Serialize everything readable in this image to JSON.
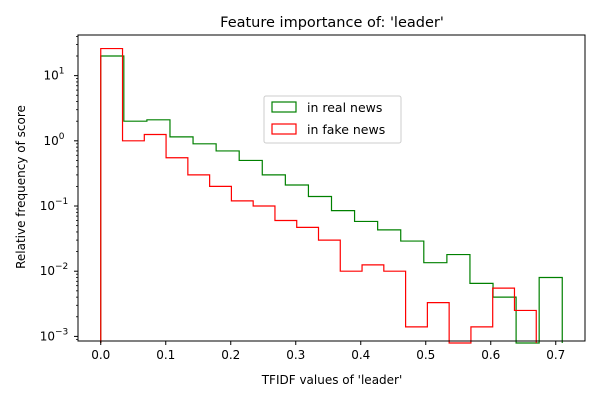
{
  "chart_data": {
    "type": "histogram-step",
    "title": "Feature importance of: 'leader'",
    "xlabel": "TFIDF values of 'leader'",
    "ylabel": "Relative frequency of score",
    "xlim": [
      -0.035,
      0.745
    ],
    "ylim": [
      0.00085,
      42
    ],
    "yscale": "log",
    "grid": false,
    "legend_position": "center-top",
    "x_ticks": [
      "0.0",
      "0.1",
      "0.2",
      "0.3",
      "0.4",
      "0.5",
      "0.6",
      "0.7"
    ],
    "x_tick_values": [
      0,
      0.1,
      0.2,
      0.3,
      0.4,
      0.5,
      0.6,
      0.7
    ],
    "y_ticks": [
      {
        "base": "10",
        "exp": "−3",
        "value": 0.001
      },
      {
        "base": "10",
        "exp": "−2",
        "value": 0.01
      },
      {
        "base": "10",
        "exp": "−1",
        "value": 0.1
      },
      {
        "base": "10",
        "exp": "0",
        "value": 1
      },
      {
        "base": "10",
        "exp": "1",
        "value": 10
      }
    ],
    "series": [
      {
        "name": "in real news",
        "color": "#008000",
        "bin_edges": [
          0,
          0.0355,
          0.071,
          0.1065,
          0.142,
          0.1775,
          0.213,
          0.2485,
          0.284,
          0.3195,
          0.355,
          0.3905,
          0.426,
          0.4615,
          0.497,
          0.5325,
          0.568,
          0.6035,
          0.639,
          0.6745,
          0.71
        ],
        "values": [
          20,
          2.0,
          2.1,
          1.15,
          0.9,
          0.7,
          0.5,
          0.3,
          0.21,
          0.14,
          0.085,
          0.058,
          0.043,
          0.029,
          0.0135,
          0.018,
          0.0065,
          0.004,
          0,
          0.008
        ]
      },
      {
        "name": "in fake news",
        "color": "#ff0000",
        "bin_edges": [
          0,
          0.0335,
          0.067,
          0.1005,
          0.134,
          0.1675,
          0.201,
          0.2345,
          0.268,
          0.3015,
          0.335,
          0.3685,
          0.402,
          0.4355,
          0.469,
          0.5025,
          0.536,
          0.5695,
          0.603,
          0.6365,
          0.67
        ],
        "values": [
          26,
          1.0,
          1.25,
          0.55,
          0.3,
          0.2,
          0.12,
          0.1,
          0.06,
          0.047,
          0.03,
          0.01,
          0.0125,
          0.01,
          0.0014,
          0.0033,
          0,
          0.0014,
          0.0055,
          0.0025
        ]
      }
    ]
  }
}
